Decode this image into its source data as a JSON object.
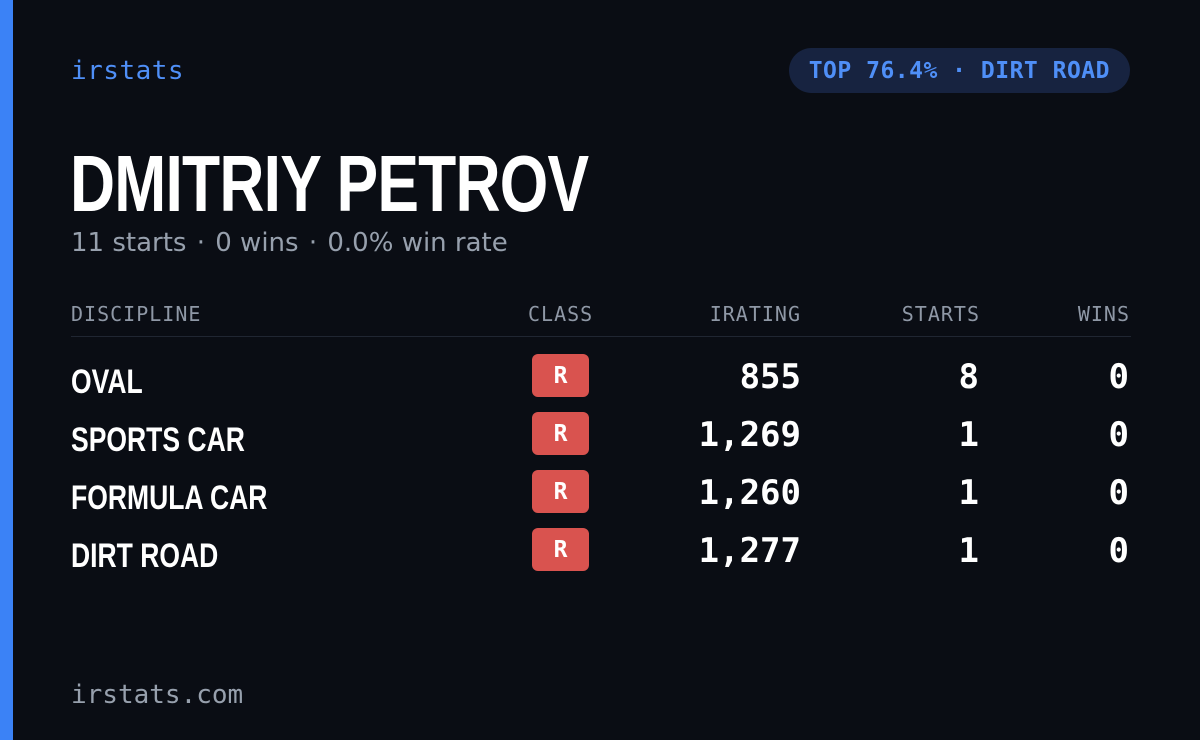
{
  "brand": "irstats",
  "badge_pill": "TOP 76.4% · DIRT ROAD",
  "driver_name": "DMITRIY PETROV",
  "summary": {
    "starts": "11 starts",
    "wins": "0 wins",
    "win_rate": "0.0% win rate",
    "separator": "·"
  },
  "table": {
    "headers": {
      "discipline": "DISCIPLINE",
      "class": "CLASS",
      "irating": "IRATING",
      "starts": "STARTS",
      "wins": "WINS"
    },
    "rows": [
      {
        "discipline": "OVAL",
        "class": "R",
        "irating": "855",
        "starts": "8",
        "wins": "0"
      },
      {
        "discipline": "SPORTS CAR",
        "class": "R",
        "irating": "1,269",
        "starts": "1",
        "wins": "0"
      },
      {
        "discipline": "FORMULA CAR",
        "class": "R",
        "irating": "1,260",
        "starts": "1",
        "wins": "0"
      },
      {
        "discipline": "DIRT ROAD",
        "class": "R",
        "irating": "1,277",
        "starts": "1",
        "wins": "0"
      }
    ]
  },
  "footer": "irstats.com",
  "colors": {
    "accent": "#3b82f6",
    "background": "#0a0d14",
    "class_badge": "#d9534f",
    "pill_background": "#172340"
  }
}
